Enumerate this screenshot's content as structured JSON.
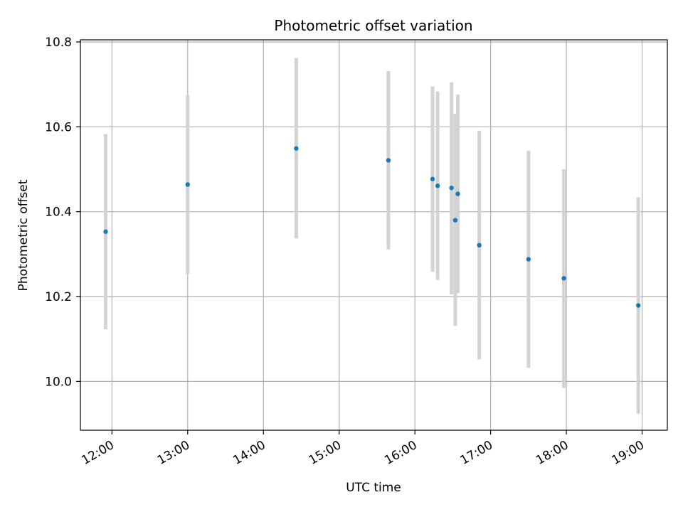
{
  "chart_data": {
    "type": "scatter",
    "title": "Photometric offset variation",
    "xlabel": "UTC time",
    "ylabel": "Photometric offset",
    "x_ticks": [
      "12:00",
      "13:00",
      "14:00",
      "15:00",
      "16:00",
      "17:00",
      "18:00",
      "19:00"
    ],
    "y_ticks": [
      "10.0",
      "10.2",
      "10.4",
      "10.6",
      "10.8"
    ],
    "xlim": [
      "11:35",
      "19:20"
    ],
    "ylim": [
      9.885,
      10.805
    ],
    "grid": true,
    "colors": {
      "point": "#1f77b4",
      "errorbar": "#d3d3d3",
      "grid": "#b0b0b0"
    },
    "points": [
      {
        "time": "11:55",
        "value": 10.353,
        "low": 10.123,
        "high": 10.583
      },
      {
        "time": "13:00",
        "value": 10.464,
        "low": 10.253,
        "high": 10.675
      },
      {
        "time": "14:26",
        "value": 10.549,
        "low": 10.337,
        "high": 10.762
      },
      {
        "time": "15:39",
        "value": 10.521,
        "low": 10.311,
        "high": 10.731
      },
      {
        "time": "16:14",
        "value": 10.477,
        "low": 10.259,
        "high": 10.695
      },
      {
        "time": "16:18",
        "value": 10.461,
        "low": 10.239,
        "high": 10.683
      },
      {
        "time": "16:29",
        "value": 10.456,
        "low": 10.205,
        "high": 10.705
      },
      {
        "time": "16:32",
        "value": 10.38,
        "low": 10.131,
        "high": 10.631
      },
      {
        "time": "16:34",
        "value": 10.442,
        "low": 10.208,
        "high": 10.676
      },
      {
        "time": "16:51",
        "value": 10.321,
        "low": 10.052,
        "high": 10.591
      },
      {
        "time": "17:30",
        "value": 10.288,
        "low": 10.032,
        "high": 10.544
      },
      {
        "time": "17:58",
        "value": 10.243,
        "low": 9.985,
        "high": 10.5
      },
      {
        "time": "18:57",
        "value": 10.179,
        "low": 9.924,
        "high": 10.434
      }
    ]
  }
}
